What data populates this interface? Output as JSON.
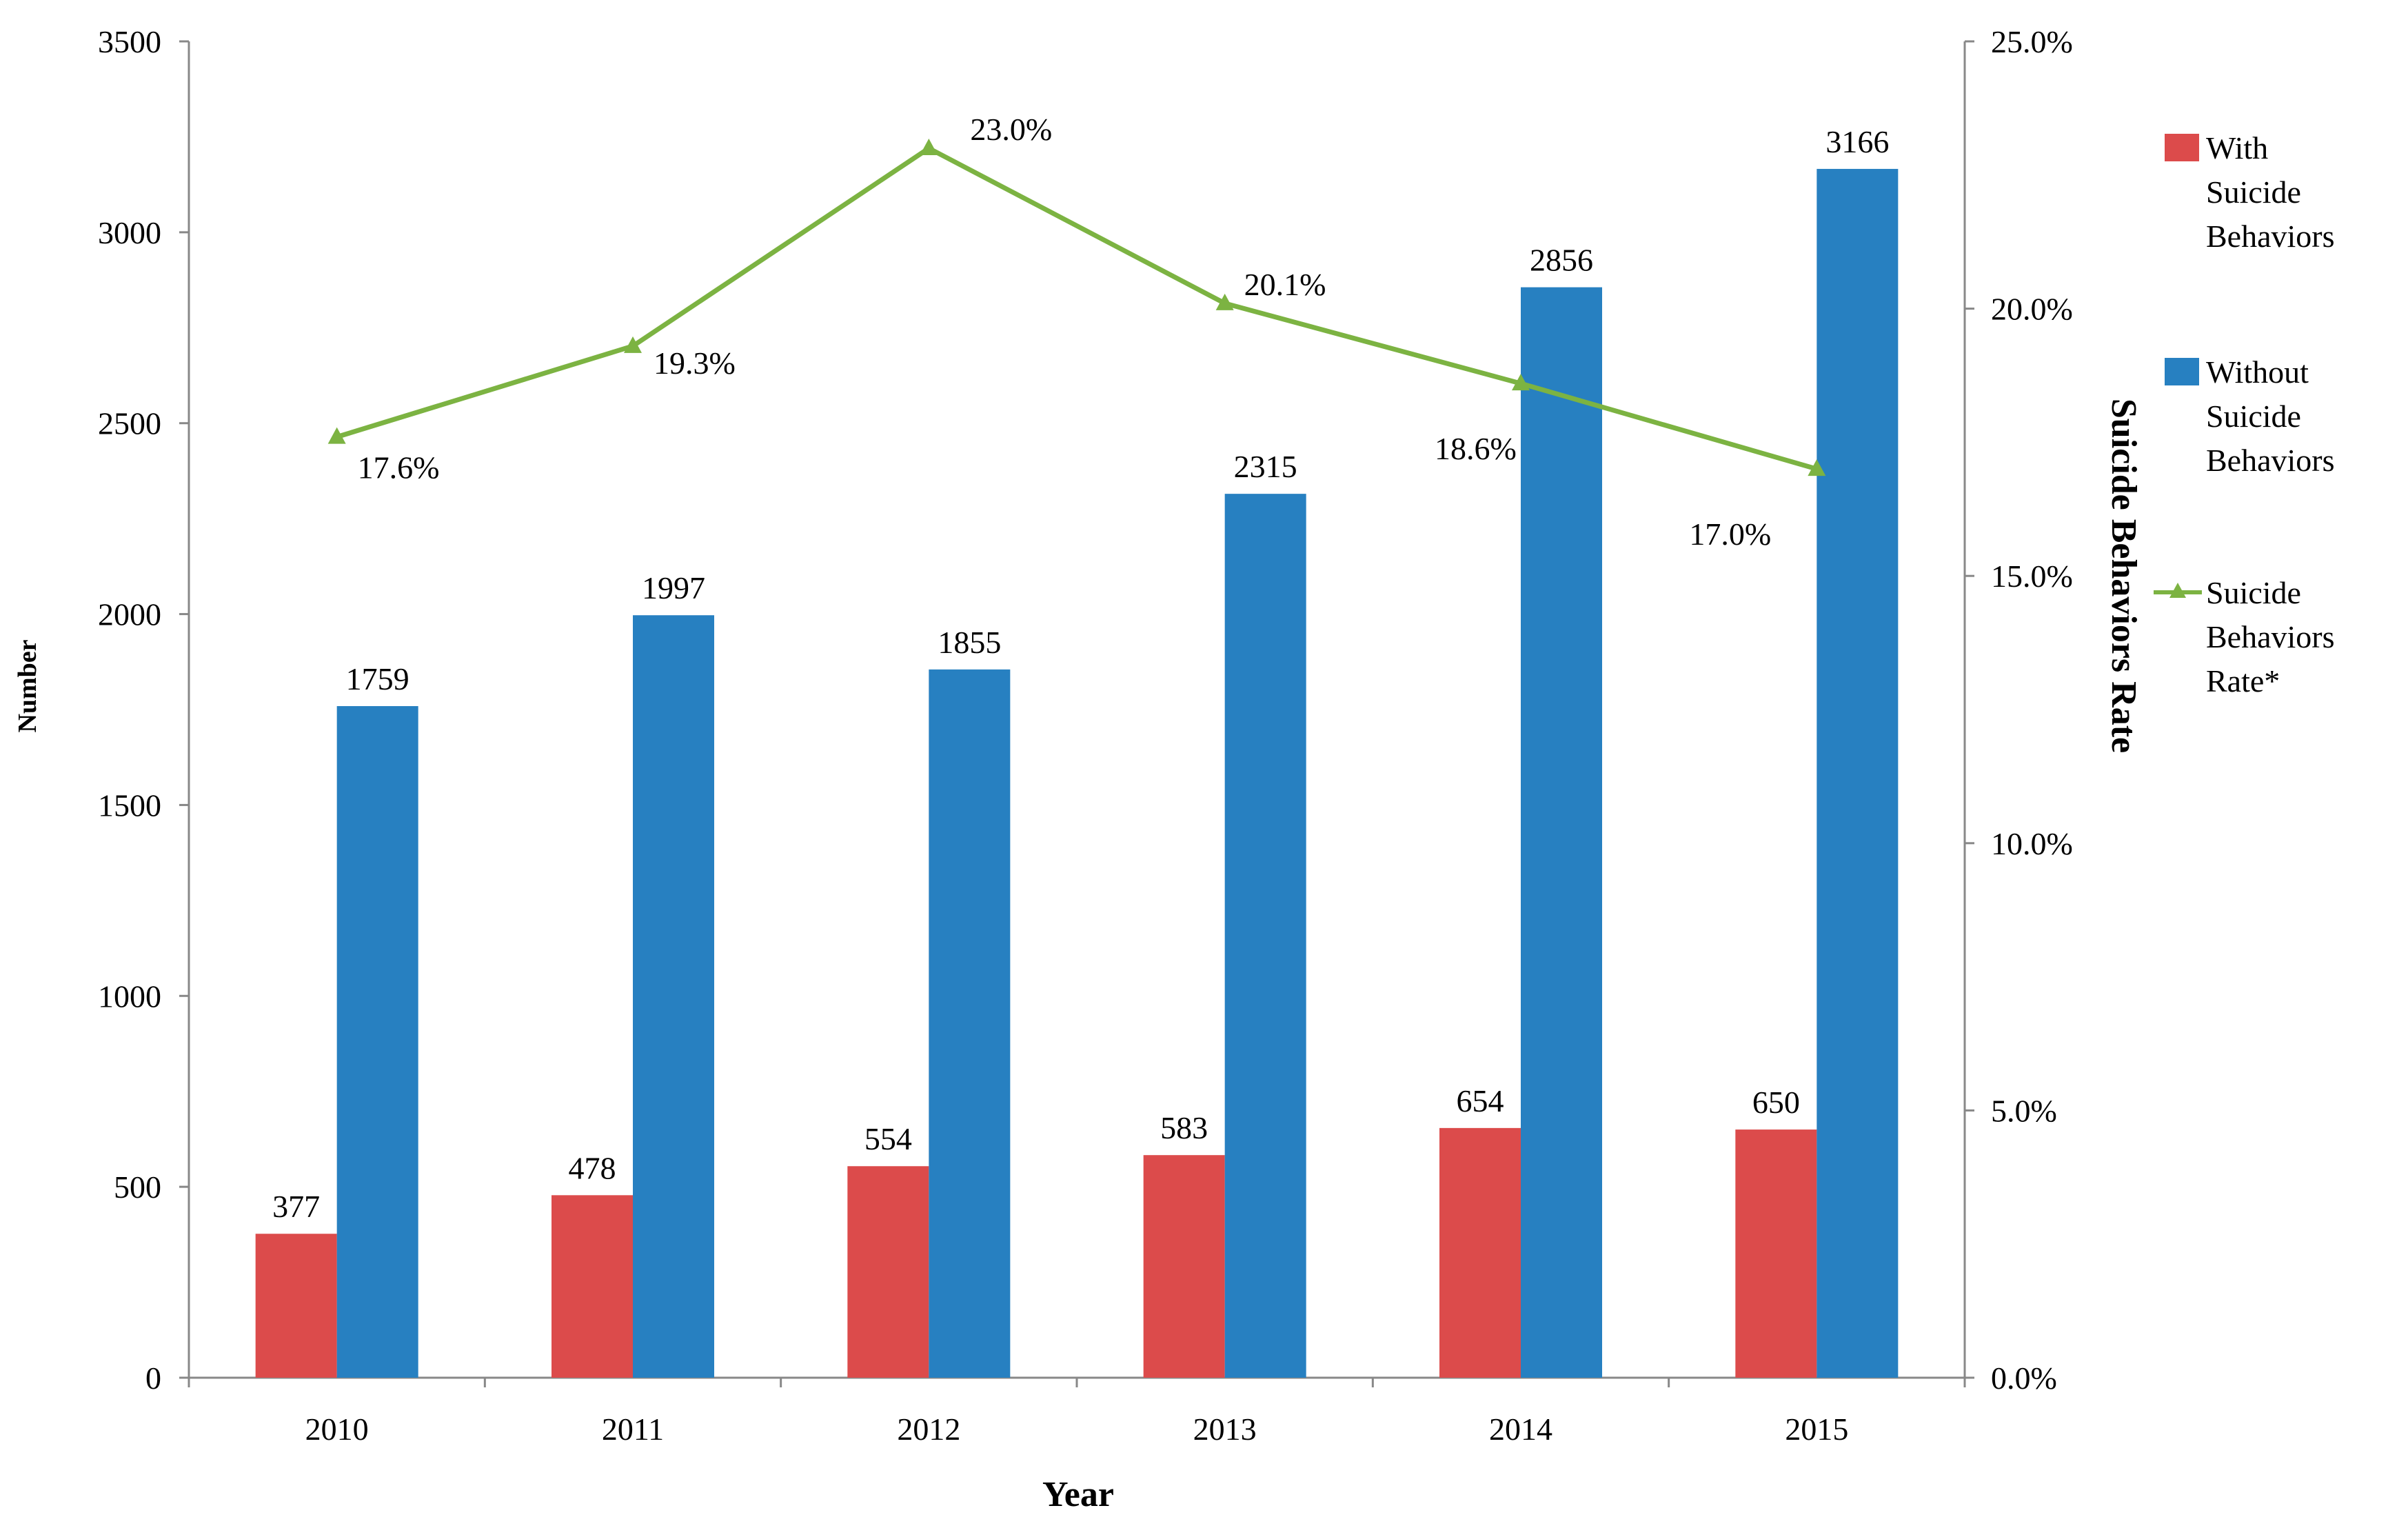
{
  "chart_data": {
    "type": "bar",
    "categories": [
      "2010",
      "2011",
      "2012",
      "2013",
      "2014",
      "2015"
    ],
    "series": [
      {
        "name": "With Suicide Behaviors",
        "type": "bar",
        "axis": "left",
        "color": "#DC4B4B",
        "values": [
          377,
          478,
          554,
          583,
          654,
          650
        ],
        "labels": [
          "377",
          "478",
          "554",
          "583",
          "654",
          "650"
        ]
      },
      {
        "name": "Without Suicide Behaviors",
        "type": "bar",
        "axis": "left",
        "color": "#2780C1",
        "values": [
          1759,
          1997,
          1855,
          2315,
          2856,
          3166
        ],
        "labels": [
          "1759",
          "1997",
          "1855",
          "2315",
          "2856",
          "3166"
        ]
      },
      {
        "name": "Suicide Behaviors Rate*",
        "type": "line",
        "axis": "right",
        "color": "#7CB342",
        "values": [
          17.6,
          19.3,
          23.0,
          20.1,
          18.6,
          17.0
        ],
        "labels": [
          "17.6%",
          "19.3%",
          "23.0%",
          "20.1%",
          "18.6%",
          "17.0%"
        ]
      }
    ],
    "legend_lines": [
      [
        "With",
        "Suicide",
        "Behaviors"
      ],
      [
        "Without",
        "Suicide",
        "Behaviors"
      ],
      [
        "Suicide",
        "Behaviors",
        "Rate*"
      ]
    ],
    "xlabel": "Year",
    "ylabel": "Number",
    "y2label": "Suicide Behaviors Rate",
    "ylim": [
      0,
      3500
    ],
    "yticks": [
      0,
      500,
      1000,
      1500,
      2000,
      2500,
      3000,
      3500
    ],
    "ytick_labels": [
      "0",
      "500",
      "1000",
      "1500",
      "2000",
      "2500",
      "3000",
      "3500"
    ],
    "y2lim": [
      0,
      25
    ],
    "y2ticks": [
      0,
      5,
      10,
      15,
      20,
      25
    ],
    "y2tick_labels": [
      "0.0%",
      "5.0%",
      "10.0%",
      "15.0%",
      "20.0%",
      "25.0%"
    ],
    "grid": false,
    "legend_position": "right"
  }
}
